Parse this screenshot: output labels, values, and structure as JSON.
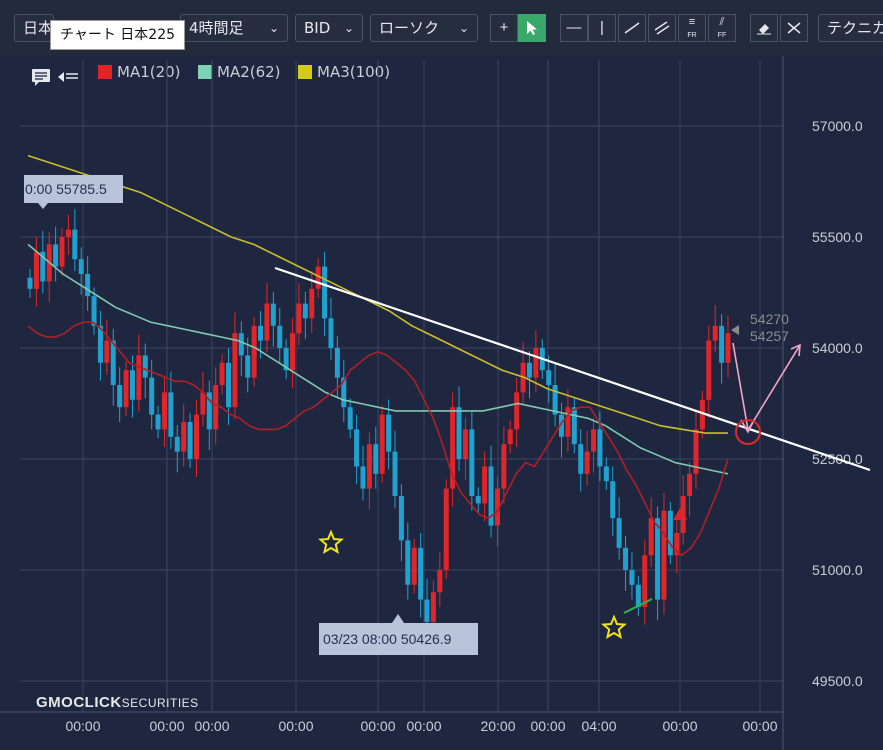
{
  "toolbar": {
    "symbol_label": "日本",
    "symbol_tooltip": "チャート 日本225",
    "timeframe": "4時間足",
    "price_type": "BID",
    "chart_type": "ローソク",
    "tech_label": "テクニカ",
    "icons": [
      "crosshair-icon",
      "cursor-icon",
      "horizontal-line-icon",
      "vertical-line-icon",
      "trendline-icon",
      "channel-icon",
      "fib-retracement-icon",
      "fib-fan-icon",
      "eraser-icon",
      "delete-drawings-icon"
    ],
    "fr_label": "FR",
    "ff_label": "FF"
  },
  "legend": [
    {
      "label": "MA1(20)",
      "color": "#e02424"
    },
    {
      "label": "MA2(62)",
      "color": "#7fd3b4"
    },
    {
      "label": "MA3(100)",
      "color": "#d4cc1a"
    }
  ],
  "brand": {
    "main": "GMOCLICK",
    "sub": "SECURITIES"
  },
  "chart_data": {
    "type": "candlestick",
    "y_axis": {
      "ticks": [
        "57000.0",
        "55500.0",
        "54000.0",
        "52500.0",
        "51000.0",
        "49500.0"
      ],
      "range": [
        49200,
        57800
      ]
    },
    "x_axis": {
      "ticks": [
        "00:00",
        "00:00",
        "00:00",
        "00:00",
        "00:00",
        "00:00",
        "20:00",
        "00:00",
        "04:00",
        "00:00",
        "00:00"
      ]
    },
    "candle_closes": [
      54800,
      55300,
      54900,
      55400,
      55100,
      55500,
      55600,
      55200,
      55000,
      54700,
      54300,
      53800,
      54100,
      53500,
      53200,
      53700,
      53300,
      53900,
      53600,
      53100,
      52900,
      53400,
      52800,
      52600,
      53000,
      52500,
      53100,
      53400,
      52900,
      53500,
      53800,
      53200,
      54200,
      53900,
      53600,
      54300,
      54100,
      54600,
      54300,
      54000,
      53700,
      54200,
      54600,
      54400,
      54800,
      55100,
      54400,
      54000,
      53600,
      53200,
      52900,
      52400,
      52100,
      52700,
      52300,
      53100,
      52600,
      52000,
      51400,
      50800,
      51300,
      50600,
      50300,
      50700,
      51000,
      52100,
      53200,
      52500,
      52900,
      52000,
      51900,
      52400,
      51600,
      52100,
      52700,
      52900,
      53400,
      53800,
      53600,
      54000,
      53700,
      53500,
      53100,
      52800,
      53200,
      52700,
      52300,
      52600,
      52900,
      52400,
      52200,
      51700,
      51300,
      51000,
      50800,
      50500,
      51200,
      51700,
      50600,
      51800,
      51200,
      51500,
      52000,
      52300,
      52900,
      53300,
      54100,
      54300,
      53800,
      54200
    ],
    "ma1": [
      54300,
      54200,
      54150,
      54150,
      54200,
      54300,
      54350,
      54350,
      54250,
      54100,
      53950,
      53800,
      53750,
      53700,
      53650,
      53600,
      53550,
      53550,
      53500,
      53400,
      53250,
      53200,
      53100,
      53050,
      52950,
      52900,
      52900,
      52900,
      52950,
      53050,
      53150,
      53200,
      53300,
      53400,
      53500,
      53700,
      53800,
      53900,
      53950,
      53900,
      53800,
      53700,
      53550,
      53300,
      53050,
      52700,
      52300,
      52050,
      51900,
      51750,
      51700,
      51800,
      52050,
      52300,
      52450,
      52400,
      52600,
      52800,
      53000,
      53150,
      53200,
      53200,
      53000,
      52800,
      52600,
      52350,
      52150,
      51900,
      51650,
      51500,
      51300,
      51200,
      51300,
      51500,
      51800,
      52100,
      52500
    ],
    "ma2": [
      55400,
      55200,
      55000,
      54850,
      54700,
      54550,
      54450,
      54350,
      54300,
      54250,
      54200,
      54150,
      54100,
      54000,
      53850,
      53700,
      53550,
      53400,
      53300,
      53250,
      53200,
      53150,
      53150,
      53150,
      53150,
      53150,
      53150,
      53200,
      53250,
      53200,
      53150,
      53100,
      53050,
      52950,
      52800,
      52650,
      52550,
      52450,
      52400,
      52350,
      52300
    ],
    "ma3": [
      56600,
      56500,
      56400,
      56300,
      56200,
      56100,
      55950,
      55800,
      55650,
      55500,
      55400,
      55250,
      55100,
      54950,
      54800,
      54650,
      54500,
      54300,
      54150,
      54000,
      53850,
      53700,
      53600,
      53450,
      53350,
      53250,
      53150,
      53050,
      52950,
      52900,
      52850,
      52850
    ],
    "annotations": {
      "hi_label": "0:00 55785.5",
      "lo_label": "03/23 08:00 50426.9",
      "tags": [
        "54270",
        "54257"
      ]
    }
  }
}
